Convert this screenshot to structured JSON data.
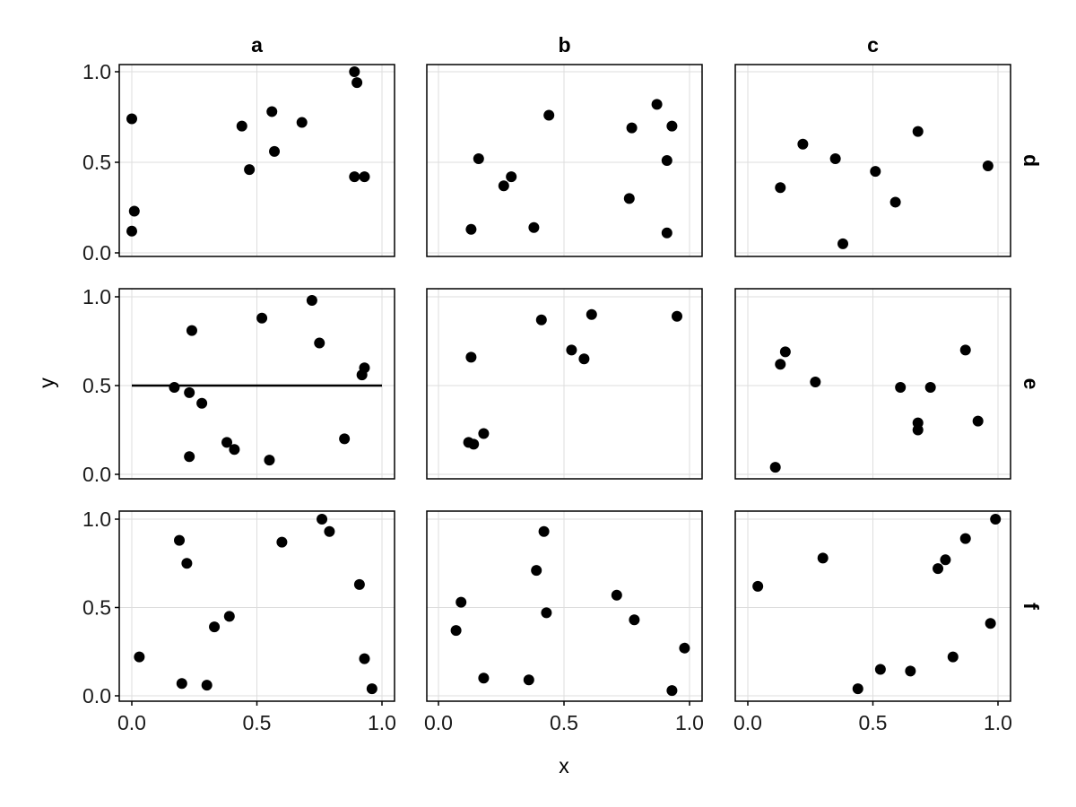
{
  "chart_data": {
    "type": "scatter",
    "xlabel": "x",
    "ylabel": "y",
    "xlim": [
      0,
      1
    ],
    "ylim": [
      0,
      1
    ],
    "x_ticks": [
      "0.0",
      "0.5",
      "1.0"
    ],
    "y_ticks": [
      "0.0",
      "0.5",
      "1.0"
    ],
    "grid": true,
    "columns": [
      "a",
      "b",
      "c"
    ],
    "rows": [
      "d",
      "e",
      "f"
    ],
    "panels": [
      {
        "row": "d",
        "col": "a",
        "points": [
          [
            0.0,
            0.74
          ],
          [
            0.01,
            0.23
          ],
          [
            0.0,
            0.12
          ],
          [
            0.44,
            0.7
          ],
          [
            0.47,
            0.46
          ],
          [
            0.56,
            0.78
          ],
          [
            0.57,
            0.56
          ],
          [
            0.68,
            0.72
          ],
          [
            0.89,
            1.0
          ],
          [
            0.9,
            0.94
          ],
          [
            0.89,
            0.42
          ],
          [
            0.93,
            0.42
          ]
        ]
      },
      {
        "row": "d",
        "col": "b",
        "points": [
          [
            0.13,
            0.13
          ],
          [
            0.16,
            0.52
          ],
          [
            0.26,
            0.37
          ],
          [
            0.29,
            0.42
          ],
          [
            0.38,
            0.14
          ],
          [
            0.44,
            0.76
          ],
          [
            0.77,
            0.69
          ],
          [
            0.76,
            0.3
          ],
          [
            0.87,
            0.82
          ],
          [
            0.91,
            0.51
          ],
          [
            0.93,
            0.7
          ],
          [
            0.91,
            0.11
          ]
        ]
      },
      {
        "row": "d",
        "col": "c",
        "points": [
          [
            0.13,
            0.36
          ],
          [
            0.22,
            0.6
          ],
          [
            0.35,
            0.52
          ],
          [
            0.38,
            0.05
          ],
          [
            0.51,
            0.45
          ],
          [
            0.59,
            0.28
          ],
          [
            0.68,
            0.67
          ],
          [
            0.96,
            0.48
          ]
        ]
      },
      {
        "row": "e",
        "col": "a",
        "points": [
          [
            0.17,
            0.49
          ],
          [
            0.23,
            0.46
          ],
          [
            0.24,
            0.81
          ],
          [
            0.23,
            0.1
          ],
          [
            0.28,
            0.4
          ],
          [
            0.38,
            0.18
          ],
          [
            0.41,
            0.14
          ],
          [
            0.52,
            0.88
          ],
          [
            0.55,
            0.08
          ],
          [
            0.72,
            0.98
          ],
          [
            0.75,
            0.74
          ],
          [
            0.85,
            0.2
          ],
          [
            0.92,
            0.56
          ],
          [
            0.93,
            0.6
          ]
        ],
        "hline": {
          "y": 0.5,
          "x0": 0.0,
          "x1": 1.0
        }
      },
      {
        "row": "e",
        "col": "b",
        "points": [
          [
            0.12,
            0.18
          ],
          [
            0.13,
            0.66
          ],
          [
            0.14,
            0.17
          ],
          [
            0.18,
            0.23
          ],
          [
            0.41,
            0.87
          ],
          [
            0.53,
            0.7
          ],
          [
            0.58,
            0.65
          ],
          [
            0.61,
            0.9
          ],
          [
            0.95,
            0.89
          ]
        ]
      },
      {
        "row": "e",
        "col": "c",
        "points": [
          [
            0.11,
            0.04
          ],
          [
            0.13,
            0.62
          ],
          [
            0.15,
            0.69
          ],
          [
            0.27,
            0.52
          ],
          [
            0.61,
            0.49
          ],
          [
            0.68,
            0.29
          ],
          [
            0.68,
            0.25
          ],
          [
            0.73,
            0.49
          ],
          [
            0.87,
            0.7
          ],
          [
            0.92,
            0.3
          ]
        ]
      },
      {
        "row": "f",
        "col": "a",
        "points": [
          [
            0.03,
            0.22
          ],
          [
            0.19,
            0.88
          ],
          [
            0.2,
            0.07
          ],
          [
            0.22,
            0.75
          ],
          [
            0.3,
            0.06
          ],
          [
            0.33,
            0.39
          ],
          [
            0.39,
            0.45
          ],
          [
            0.6,
            0.87
          ],
          [
            0.76,
            1.0
          ],
          [
            0.79,
            0.93
          ],
          [
            0.91,
            0.63
          ],
          [
            0.93,
            0.21
          ],
          [
            0.96,
            0.04
          ]
        ]
      },
      {
        "row": "f",
        "col": "b",
        "points": [
          [
            0.07,
            0.37
          ],
          [
            0.09,
            0.53
          ],
          [
            0.18,
            0.1
          ],
          [
            0.36,
            0.09
          ],
          [
            0.39,
            0.71
          ],
          [
            0.42,
            0.93
          ],
          [
            0.43,
            0.47
          ],
          [
            0.71,
            0.57
          ],
          [
            0.78,
            0.43
          ],
          [
            0.93,
            0.03
          ],
          [
            0.98,
            0.27
          ]
        ]
      },
      {
        "row": "f",
        "col": "c",
        "points": [
          [
            0.04,
            0.62
          ],
          [
            0.3,
            0.78
          ],
          [
            0.44,
            0.04
          ],
          [
            0.53,
            0.15
          ],
          [
            0.65,
            0.14
          ],
          [
            0.76,
            0.72
          ],
          [
            0.79,
            0.77
          ],
          [
            0.82,
            0.22
          ],
          [
            0.87,
            0.89
          ],
          [
            0.97,
            0.41
          ],
          [
            0.99,
            1.0
          ]
        ]
      }
    ]
  },
  "colors": {
    "point": "#000000",
    "frame": "#000000",
    "grid": "#dddddd",
    "background": "#ffffff"
  }
}
